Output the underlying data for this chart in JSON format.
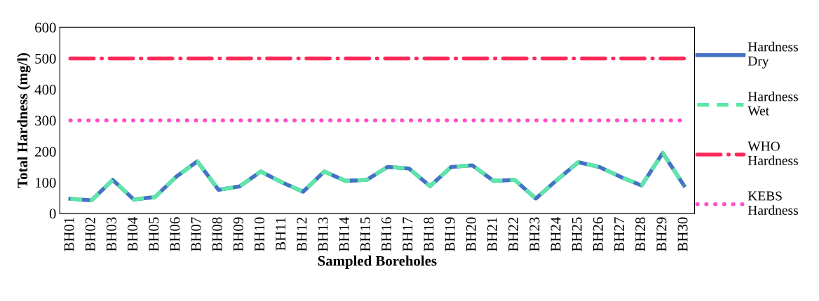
{
  "chart_data": {
    "type": "line",
    "xlabel": "Sampled Boreholes",
    "ylabel": "Total Hardness (mg/l)",
    "categories": [
      "BH01",
      "BH02",
      "BH03",
      "BH04",
      "BH05",
      "BH06",
      "BH07",
      "BH08",
      "BH09",
      "BH10",
      "BH11",
      "BH12",
      "BH13",
      "BH14",
      "BH15",
      "BH16",
      "BH17",
      "BH18",
      "BH19",
      "BH20",
      "BH21",
      "BH22",
      "BH23",
      "BH24",
      "BH25",
      "BH26",
      "BH27",
      "BH28",
      "BH29",
      "BH30"
    ],
    "series": [
      {
        "name": "Hardness Dry",
        "color": "#4472c4",
        "line_style": "solid",
        "values": [
          47,
          42,
          108,
          45,
          53,
          118,
          168,
          76,
          87,
          135,
          100,
          70,
          135,
          105,
          108,
          150,
          145,
          88,
          150,
          155,
          105,
          108,
          48,
          108,
          165,
          150,
          118,
          90,
          195,
          90
        ]
      },
      {
        "name": "Hardness Wet",
        "color": "#5ee6a8",
        "line_style": "dashed",
        "values": [
          47,
          42,
          108,
          45,
          53,
          118,
          168,
          76,
          87,
          135,
          100,
          70,
          135,
          105,
          108,
          150,
          145,
          88,
          150,
          155,
          105,
          108,
          48,
          108,
          165,
          150,
          118,
          90,
          195,
          90
        ]
      }
    ],
    "ref_lines": [
      {
        "axis": "y",
        "value": 500,
        "label": "WHO Hardness",
        "color": "#ff2a5a",
        "line_style": "dashdot"
      },
      {
        "axis": "y",
        "value": 300,
        "label": "KEBS Hardness",
        "color": "#ff4fc8",
        "line_style": "dotted"
      }
    ],
    "ylim": [
      0,
      600
    ],
    "yticks": [
      0,
      100,
      200,
      300,
      400,
      500,
      600
    ],
    "grid": false,
    "legend": "right",
    "marker": "none"
  }
}
